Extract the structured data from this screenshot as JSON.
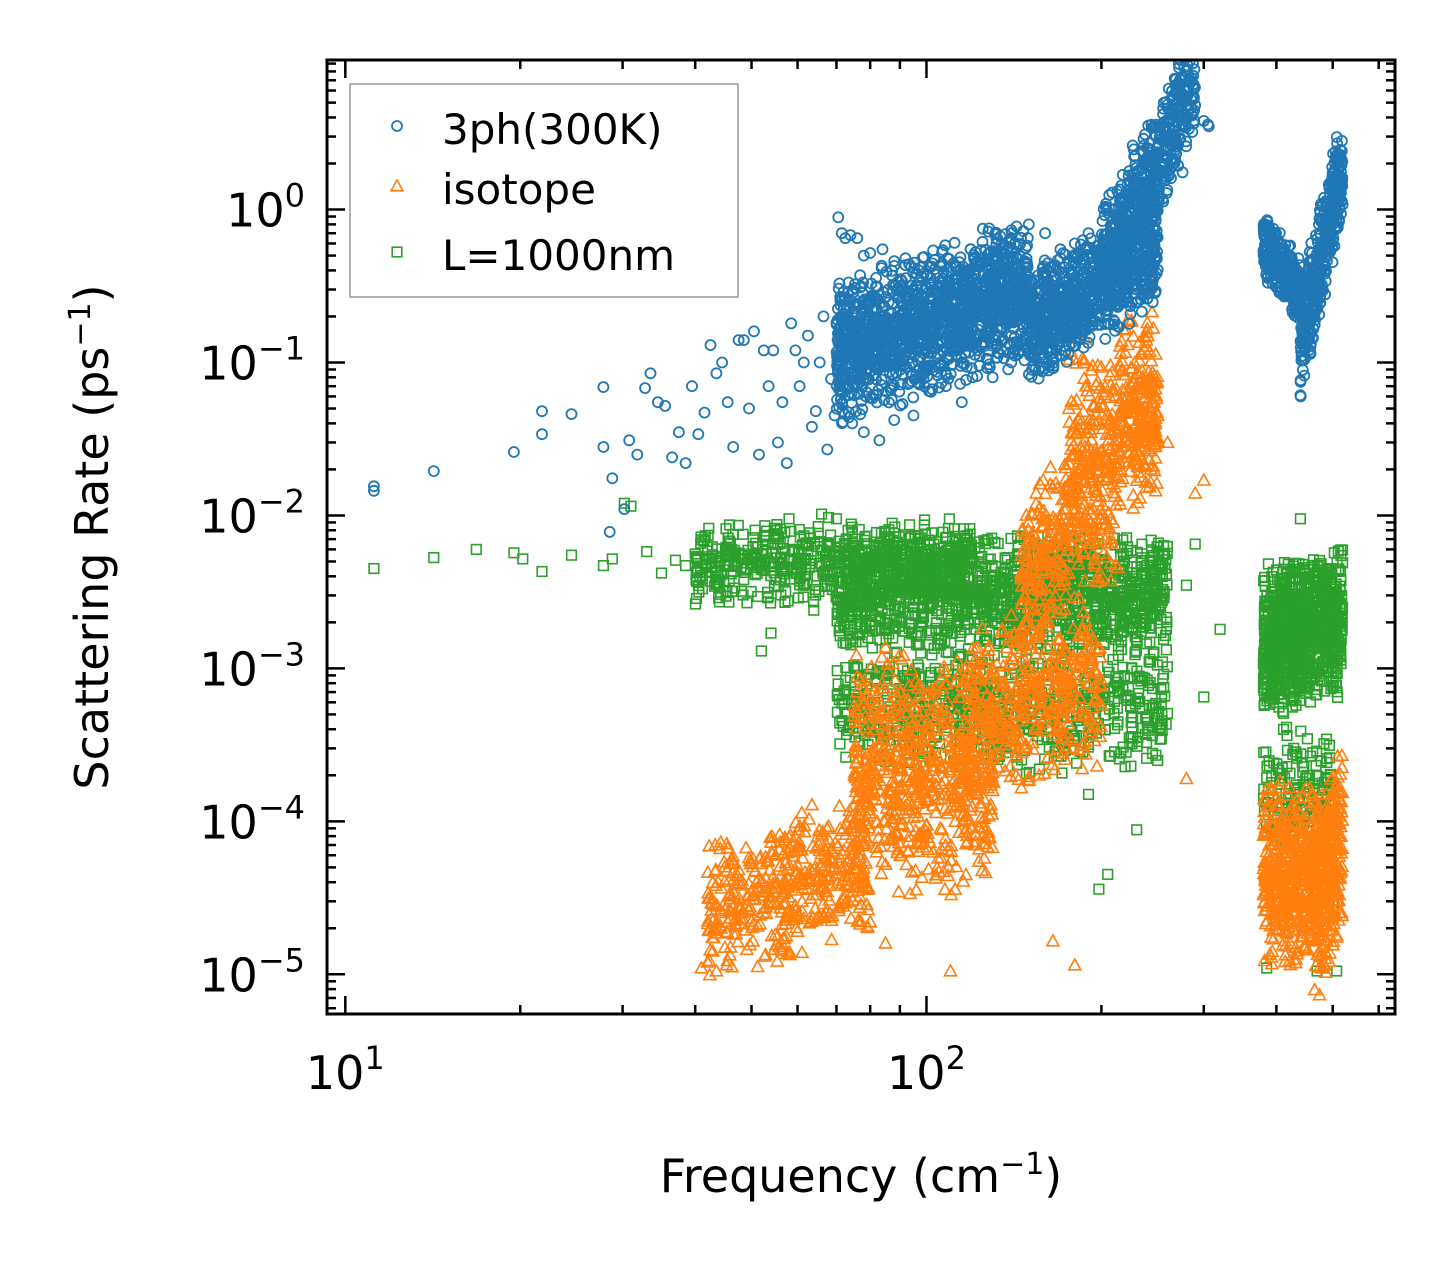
{
  "chart_data": {
    "type": "scatter",
    "title": "",
    "xlabel": "Frequency (cm",
    "xlabel_sup": "−1",
    "xlabel_end": ")",
    "ylabel": "Scattering Rate (ps",
    "ylabel_sup": "−1",
    "ylabel_end": ")",
    "xscale": "log",
    "yscale": "log",
    "xlim": [
      9.3,
      640
    ],
    "ylim": [
      5.5e-06,
      9.5
    ],
    "x_ticks": [
      {
        "value": 10,
        "base": "10",
        "exp": "1"
      },
      {
        "value": 100,
        "base": "10",
        "exp": "2"
      }
    ],
    "y_ticks": [
      {
        "value": 1,
        "base": "10",
        "exp": "0"
      },
      {
        "value": 0.1,
        "base": "10",
        "exp": "−1"
      },
      {
        "value": 0.01,
        "base": "10",
        "exp": "−2"
      },
      {
        "value": 0.001,
        "base": "10",
        "exp": "−3"
      },
      {
        "value": 0.0001,
        "base": "10",
        "exp": "−4"
      },
      {
        "value": 1e-05,
        "base": "10",
        "exp": "−5"
      }
    ],
    "legend_position": "top-left",
    "series": [
      {
        "name": "3ph(300K)",
        "marker": "circle",
        "color": "#1f77b4",
        "points": [
          [
            11.2,
            0.0155
          ],
          [
            11.2,
            0.0145
          ],
          [
            14.2,
            0.0195
          ],
          [
            19.5,
            0.026
          ],
          [
            21.8,
            0.048
          ],
          [
            21.8,
            0.034
          ],
          [
            24.5,
            0.046
          ],
          [
            27.8,
            0.069
          ],
          [
            27.8,
            0.028
          ],
          [
            28.5,
            0.0078
          ],
          [
            28.8,
            0.0175
          ],
          [
            30.2,
            0.011
          ],
          [
            30.8,
            0.031
          ],
          [
            31.8,
            0.025
          ],
          [
            32.8,
            0.068
          ],
          [
            33.5,
            0.085
          ],
          [
            34.5,
            0.055
          ],
          [
            35.5,
            0.052
          ],
          [
            36.5,
            0.024
          ],
          [
            37.5,
            0.035
          ],
          [
            38.5,
            0.022
          ],
          [
            39.5,
            0.07
          ],
          [
            40.5,
            0.034
          ],
          [
            41.5,
            0.047
          ],
          [
            42.5,
            0.13
          ],
          [
            43.5,
            0.085
          ],
          [
            44.5,
            0.1
          ],
          [
            45.5,
            0.055
          ],
          [
            46.5,
            0.028
          ],
          [
            47.5,
            0.14
          ],
          [
            48.5,
            0.14
          ],
          [
            49.5,
            0.05
          ],
          [
            50.5,
            0.16
          ],
          [
            51.5,
            0.025
          ],
          [
            52.5,
            0.12
          ],
          [
            53.5,
            0.07
          ],
          [
            54.5,
            0.12
          ],
          [
            55.5,
            0.03
          ],
          [
            56.5,
            0.055
          ],
          [
            57.5,
            0.022
          ],
          [
            58.5,
            0.18
          ],
          [
            59.5,
            0.12
          ],
          [
            60.5,
            0.07
          ],
          [
            61.5,
            0.1
          ],
          [
            62.5,
            0.15
          ],
          [
            63.5,
            0.038
          ],
          [
            64.5,
            0.048
          ],
          [
            65.5,
            0.1
          ],
          [
            66.5,
            0.2
          ],
          [
            67.5,
            0.027
          ],
          [
            68.5,
            0.078
          ],
          [
            69.5,
            0.045
          ],
          [
            70.5,
            0.89
          ],
          [
            71.5,
            0.7
          ],
          [
            72.5,
            0.65
          ],
          [
            74.0,
            0.68
          ],
          [
            76.0,
            0.65
          ],
          [
            78.0,
            0.5
          ],
          [
            80.0,
            0.52
          ],
          [
            84.0,
            0.55
          ],
          [
            88.0,
            0.46
          ],
          [
            92.0,
            0.48
          ],
          [
            96.0,
            0.38
          ],
          [
            74.5,
            0.04
          ],
          [
            78.0,
            0.035
          ],
          [
            83.0,
            0.031
          ],
          [
            88.0,
            0.042
          ],
          [
            95.0,
            0.045
          ],
          [
            101.0,
            0.065
          ],
          [
            108.0,
            0.07
          ],
          [
            115.0,
            0.055
          ],
          [
            120.0,
            0.08
          ],
          [
            130.0,
            0.08
          ],
          [
            140.0,
            0.1
          ],
          [
            125.0,
            0.75
          ],
          [
            140.0,
            0.65
          ],
          [
            150.0,
            0.8
          ],
          [
            160.0,
            0.7
          ],
          [
            170.0,
            0.55
          ],
          [
            180.0,
            0.6
          ],
          [
            190.0,
            0.7
          ],
          [
            210.0,
            0.8
          ],
          [
            240.0,
            2.2
          ],
          [
            260.0,
            2.5
          ],
          [
            280.0,
            4.0
          ],
          [
            290.0,
            4.8
          ],
          [
            300.0,
            3.8
          ],
          [
            306.0,
            3.5
          ],
          [
            275.0,
            3.5
          ],
          [
            268.0,
            3.0
          ],
          [
            305.0,
            3.6
          ],
          [
            440.0,
            0.061
          ],
          [
            442.0,
            0.11
          ],
          [
            447.0,
            0.2
          ],
          [
            452.0,
            0.18
          ]
        ],
        "dense": [
          {
            "x0": 70,
            "x1": 150,
            "y0": 0.06,
            "y1": 0.6,
            "n": 1500,
            "slope": 1.2
          },
          {
            "x0": 150,
            "x1": 250,
            "y0": 0.12,
            "y1": 0.8,
            "n": 900,
            "slope": 2.0
          },
          {
            "x0": 200,
            "x1": 290,
            "y0": 0.6,
            "y1": 4.5,
            "n": 500,
            "slope": 4.0
          },
          {
            "x0": 380,
            "x1": 440,
            "y0": 0.25,
            "y1": 0.7,
            "n": 350,
            "slope": -2.0
          },
          {
            "x0": 440,
            "x1": 520,
            "y0": 0.2,
            "y1": 1.3,
            "n": 400,
            "slope": 4.0
          }
        ]
      },
      {
        "name": "isotope",
        "marker": "triangle",
        "color": "#ff7f0e",
        "points": [
          [
            41.0,
            1.1e-05
          ],
          [
            42.0,
            1.2e-05
          ],
          [
            43.5,
            1.05e-05
          ],
          [
            45.0,
            1.5e-05
          ],
          [
            47.0,
            2.3e-05
          ],
          [
            49.0,
            2.8e-05
          ],
          [
            51.0,
            4e-05
          ],
          [
            53.0,
            2.5e-05
          ],
          [
            55.0,
            6e-05
          ],
          [
            58.0,
            3.2e-05
          ],
          [
            61.0,
            6.5e-05
          ],
          [
            65.0,
            8e-05
          ],
          [
            72.0,
            9e-05
          ],
          [
            80.0,
            2.2e-05
          ],
          [
            85.0,
            1.6e-05
          ],
          [
            110.0,
            1.05e-05
          ],
          [
            165.0,
            1.65e-05
          ],
          [
            180.0,
            1.15e-05
          ],
          [
            280.0,
            0.00019
          ],
          [
            300.0,
            0.017
          ],
          [
            290.0,
            0.014
          ],
          [
            260.0,
            0.03
          ],
          [
            250.0,
            0.045
          ]
        ],
        "dense": [
          {
            "x0": 42,
            "x1": 80,
            "y0": 1.2e-05,
            "y1": 0.00012,
            "n": 450,
            "slope": 1.0
          },
          {
            "x0": 75,
            "x1": 130,
            "y0": 3e-05,
            "y1": 0.0015,
            "n": 700,
            "slope": 0.0
          },
          {
            "x0": 120,
            "x1": 200,
            "y0": 0.00015,
            "y1": 0.003,
            "n": 400,
            "slope": 0.5
          },
          {
            "x0": 145,
            "x1": 175,
            "y0": 0.0015,
            "y1": 0.02,
            "n": 200,
            "slope": 1.0
          },
          {
            "x0": 175,
            "x1": 215,
            "y0": 0.003,
            "y1": 0.15,
            "n": 300,
            "slope": 0.0
          },
          {
            "x0": 215,
            "x1": 250,
            "y0": 0.01,
            "y1": 0.22,
            "n": 250,
            "slope": 0.0
          },
          {
            "x0": 380,
            "x1": 470,
            "y0": 1e-05,
            "y1": 0.0002,
            "n": 450,
            "slope": 0.0
          },
          {
            "x0": 465,
            "x1": 520,
            "y0": 1e-05,
            "y1": 0.00025,
            "n": 300,
            "slope": 1.0
          }
        ]
      },
      {
        "name": "L=1000nm",
        "marker": "square",
        "color": "#2ca02c",
        "points": [
          [
            11.2,
            0.0045
          ],
          [
            14.2,
            0.0053
          ],
          [
            16.8,
            0.006
          ],
          [
            19.5,
            0.0057
          ],
          [
            20.2,
            0.0052
          ],
          [
            21.8,
            0.0043
          ],
          [
            24.5,
            0.0055
          ],
          [
            27.8,
            0.0047
          ],
          [
            28.8,
            0.0052
          ],
          [
            30.2,
            0.012
          ],
          [
            31.0,
            0.0115
          ],
          [
            33.0,
            0.0058
          ],
          [
            35.0,
            0.0042
          ],
          [
            37.0,
            0.0051
          ],
          [
            38.5,
            0.0047
          ],
          [
            40.0,
            0.0056
          ],
          [
            42.0,
            0.0062
          ],
          [
            44.0,
            0.0034
          ],
          [
            46.0,
            0.0066
          ],
          [
            48.0,
            0.0052
          ],
          [
            50.0,
            0.0048
          ],
          [
            52.0,
            0.0013
          ],
          [
            54.0,
            0.0017
          ],
          [
            56.0,
            0.0038
          ],
          [
            58.0,
            0.0095
          ],
          [
            60.0,
            0.0042
          ],
          [
            62.0,
            0.0066
          ],
          [
            64.0,
            0.0024
          ],
          [
            66.0,
            0.0102
          ],
          [
            68.0,
            0.0058
          ],
          [
            70.0,
            0.0095
          ],
          [
            205.0,
            4.5e-05
          ],
          [
            198.0,
            3.6e-05
          ],
          [
            190.0,
            0.00015
          ],
          [
            230.0,
            8.8e-05
          ],
          [
            250.0,
            0.00025
          ],
          [
            300.0,
            0.00065
          ],
          [
            320.0,
            0.0018
          ],
          [
            290.0,
            0.0065
          ],
          [
            280.0,
            0.0035
          ],
          [
            440.0,
            0.0095
          ],
          [
            508.0,
            1.05e-05
          ],
          [
            385.0,
            1.1e-05
          ],
          [
            470.0,
            1.05e-05
          ],
          [
            500.0,
            2.8e-05
          ]
        ],
        "dense": [
          {
            "x0": 40,
            "x1": 120,
            "y0": 0.0025,
            "y1": 0.01,
            "n": 600,
            "slope": 0.0
          },
          {
            "x0": 70,
            "x1": 260,
            "y0": 0.0012,
            "y1": 0.008,
            "n": 1400,
            "slope": 0.0
          },
          {
            "x0": 70,
            "x1": 260,
            "y0": 0.0002,
            "y1": 0.0015,
            "n": 700,
            "slope": 0.0
          },
          {
            "x0": 380,
            "x1": 520,
            "y0": 0.0005,
            "y1": 0.006,
            "n": 900,
            "slope": 0.5
          },
          {
            "x0": 380,
            "x1": 500,
            "y0": 5e-05,
            "y1": 0.0005,
            "n": 150,
            "slope": 0.0
          }
        ]
      }
    ]
  }
}
